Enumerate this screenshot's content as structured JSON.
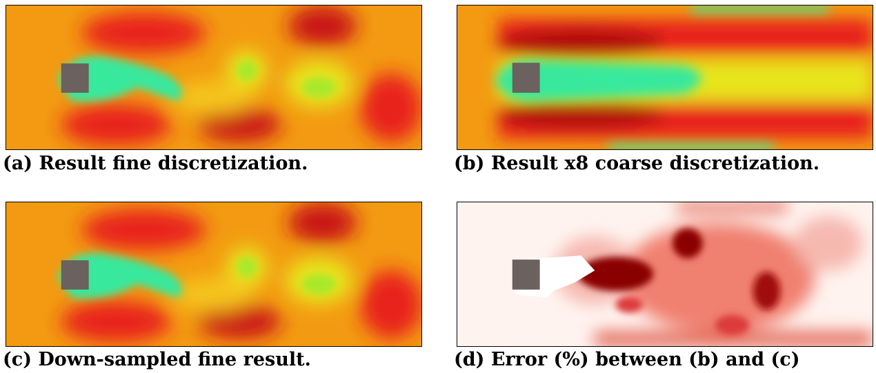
{
  "figure": {
    "panels": [
      {
        "id": "a",
        "caption": "(a) Result fine discretization.",
        "colormap": "velocity"
      },
      {
        "id": "b",
        "caption": "(b) Result x8 coarse discretization.",
        "colormap": "velocity"
      },
      {
        "id": "c",
        "caption": "(c) Down-sampled fine result.",
        "colormap": "velocity"
      },
      {
        "id": "d",
        "caption": "(d) Error (%) between (b) and (c)",
        "colormap": "error"
      }
    ],
    "colors": {
      "obstacle": "#6b615e",
      "velocity_base": "#f39a12",
      "velocity_high": "#e8231c",
      "velocity_peak": "#b00d0d",
      "velocity_low": "#38e89c",
      "velocity_mid": "#e8e51c",
      "error_base": "#fff3ef",
      "error_high": "#8a0000",
      "error_mid": "#dd3b3b"
    }
  }
}
